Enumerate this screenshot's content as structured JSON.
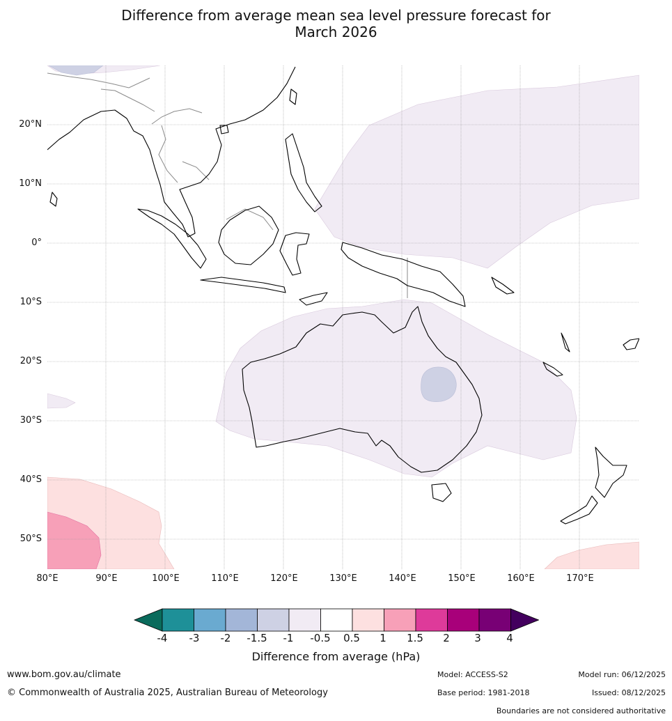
{
  "title": {
    "line1": "Difference from average mean sea level pressure forecast for",
    "line2": "March 2026"
  },
  "map": {
    "lat_labels": [
      "20°N",
      "10°N",
      "0°",
      "10°S",
      "20°S",
      "30°S",
      "40°S",
      "50°S"
    ],
    "lon_labels": [
      "80°E",
      "90°E",
      "100°E",
      "110°E",
      "120°E",
      "130°E",
      "140°E",
      "150°E",
      "160°E",
      "170°E"
    ],
    "extent": {
      "lon_min": 80,
      "lon_max": 180,
      "lat_min": -55,
      "lat_max": 30
    }
  },
  "legend": {
    "ticks": [
      "-4",
      "-3",
      "-2",
      "-1.5",
      "-1",
      "-0.5",
      "0.5",
      "1",
      "1.5",
      "2",
      "3",
      "4"
    ],
    "colors": [
      "#0a6b5c",
      "#1e9098",
      "#6aaad0",
      "#a3b6d8",
      "#ced1e4",
      "#f1ebf4",
      "#ffffff",
      "#fde0e0",
      "#f7a0b8",
      "#de3a9a",
      "#a8007a",
      "#780075",
      "#43005e"
    ],
    "label": "Difference from average (hPa)"
  },
  "footer": {
    "website": "www.bom.gov.au/climate",
    "copyright": "© Commonwealth of Australia 2025, Australian Bureau of Meteorology",
    "model": "Model: ACCESS-S2",
    "base_period": "Base period: 1981-2018",
    "model_run": "Model run: 06/12/2025",
    "issued": "Issued: 08/12/2025",
    "disclaimer": "Boundaries are not considered authoritative"
  }
}
